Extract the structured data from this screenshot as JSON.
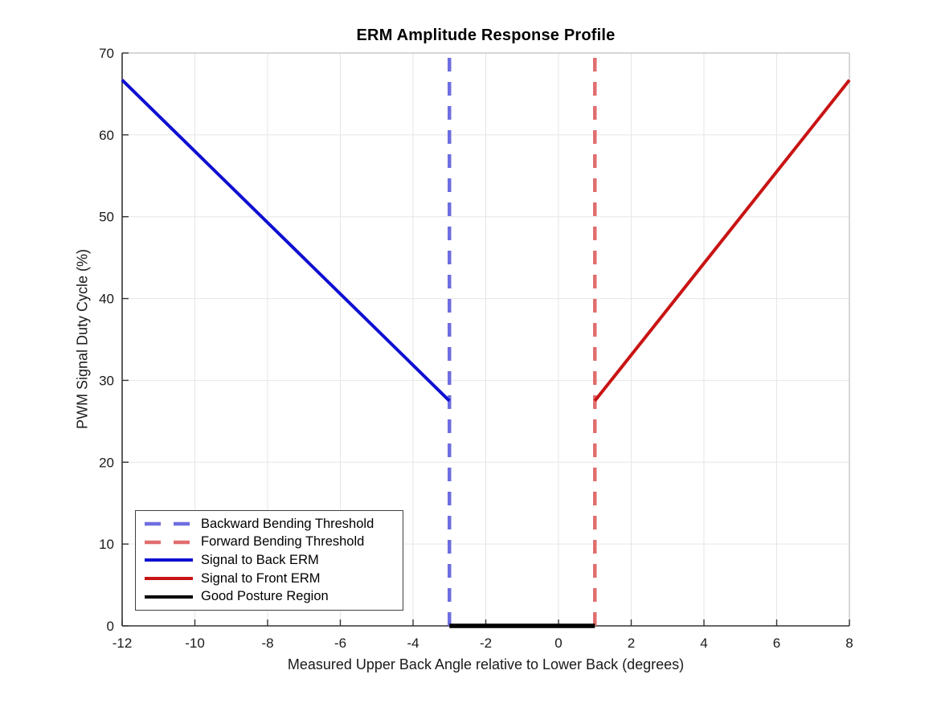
{
  "figure": {
    "background": "#ffffff"
  },
  "chart_data": {
    "type": "line",
    "title": "ERM Amplitude Response Profile",
    "xlabel": "Measured Upper Back Angle relative to Lower Back (degrees)",
    "ylabel": "PWM Signal Duty Cycle (%)",
    "xlim": [
      -12,
      8
    ],
    "ylim": [
      0,
      70
    ],
    "xticks": [
      -12,
      -10,
      -8,
      -6,
      -4,
      -2,
      0,
      2,
      4,
      6,
      8
    ],
    "yticks": [
      0,
      10,
      20,
      30,
      40,
      50,
      60,
      70
    ],
    "grid": true,
    "legend_position": "bottom-left",
    "colors": {
      "axis": "#333333",
      "box_mirror": "#bdbdbd",
      "grid": "#e6e6e6",
      "tick_text": "#1a1a1a",
      "title_text": "#000000",
      "background": "#ffffff"
    },
    "series": [
      {
        "name": "Backward Bending Threshold",
        "style": "dashed",
        "color": "#6e6ee0",
        "width": 4.5,
        "points": [
          [
            -3,
            0
          ],
          [
            -3,
            70
          ]
        ]
      },
      {
        "name": "Forward Bending Threshold",
        "style": "dashed",
        "color": "#e06e6e",
        "width": 4.5,
        "points": [
          [
            1,
            0
          ],
          [
            1,
            70
          ]
        ]
      },
      {
        "name": "Signal to Back ERM",
        "style": "solid",
        "color": "#0f0fd2",
        "width": 4,
        "points": [
          [
            -12,
            66.7
          ],
          [
            -3,
            27.5
          ]
        ]
      },
      {
        "name": "Signal to Front ERM",
        "style": "solid",
        "color": "#c81414",
        "width": 4,
        "points": [
          [
            1,
            27.5
          ],
          [
            8,
            66.7
          ]
        ]
      },
      {
        "name": "Good Posture Region",
        "style": "solid",
        "color": "#000000",
        "width": 5.5,
        "points": [
          [
            -3,
            0
          ],
          [
            1,
            0
          ]
        ]
      }
    ]
  }
}
